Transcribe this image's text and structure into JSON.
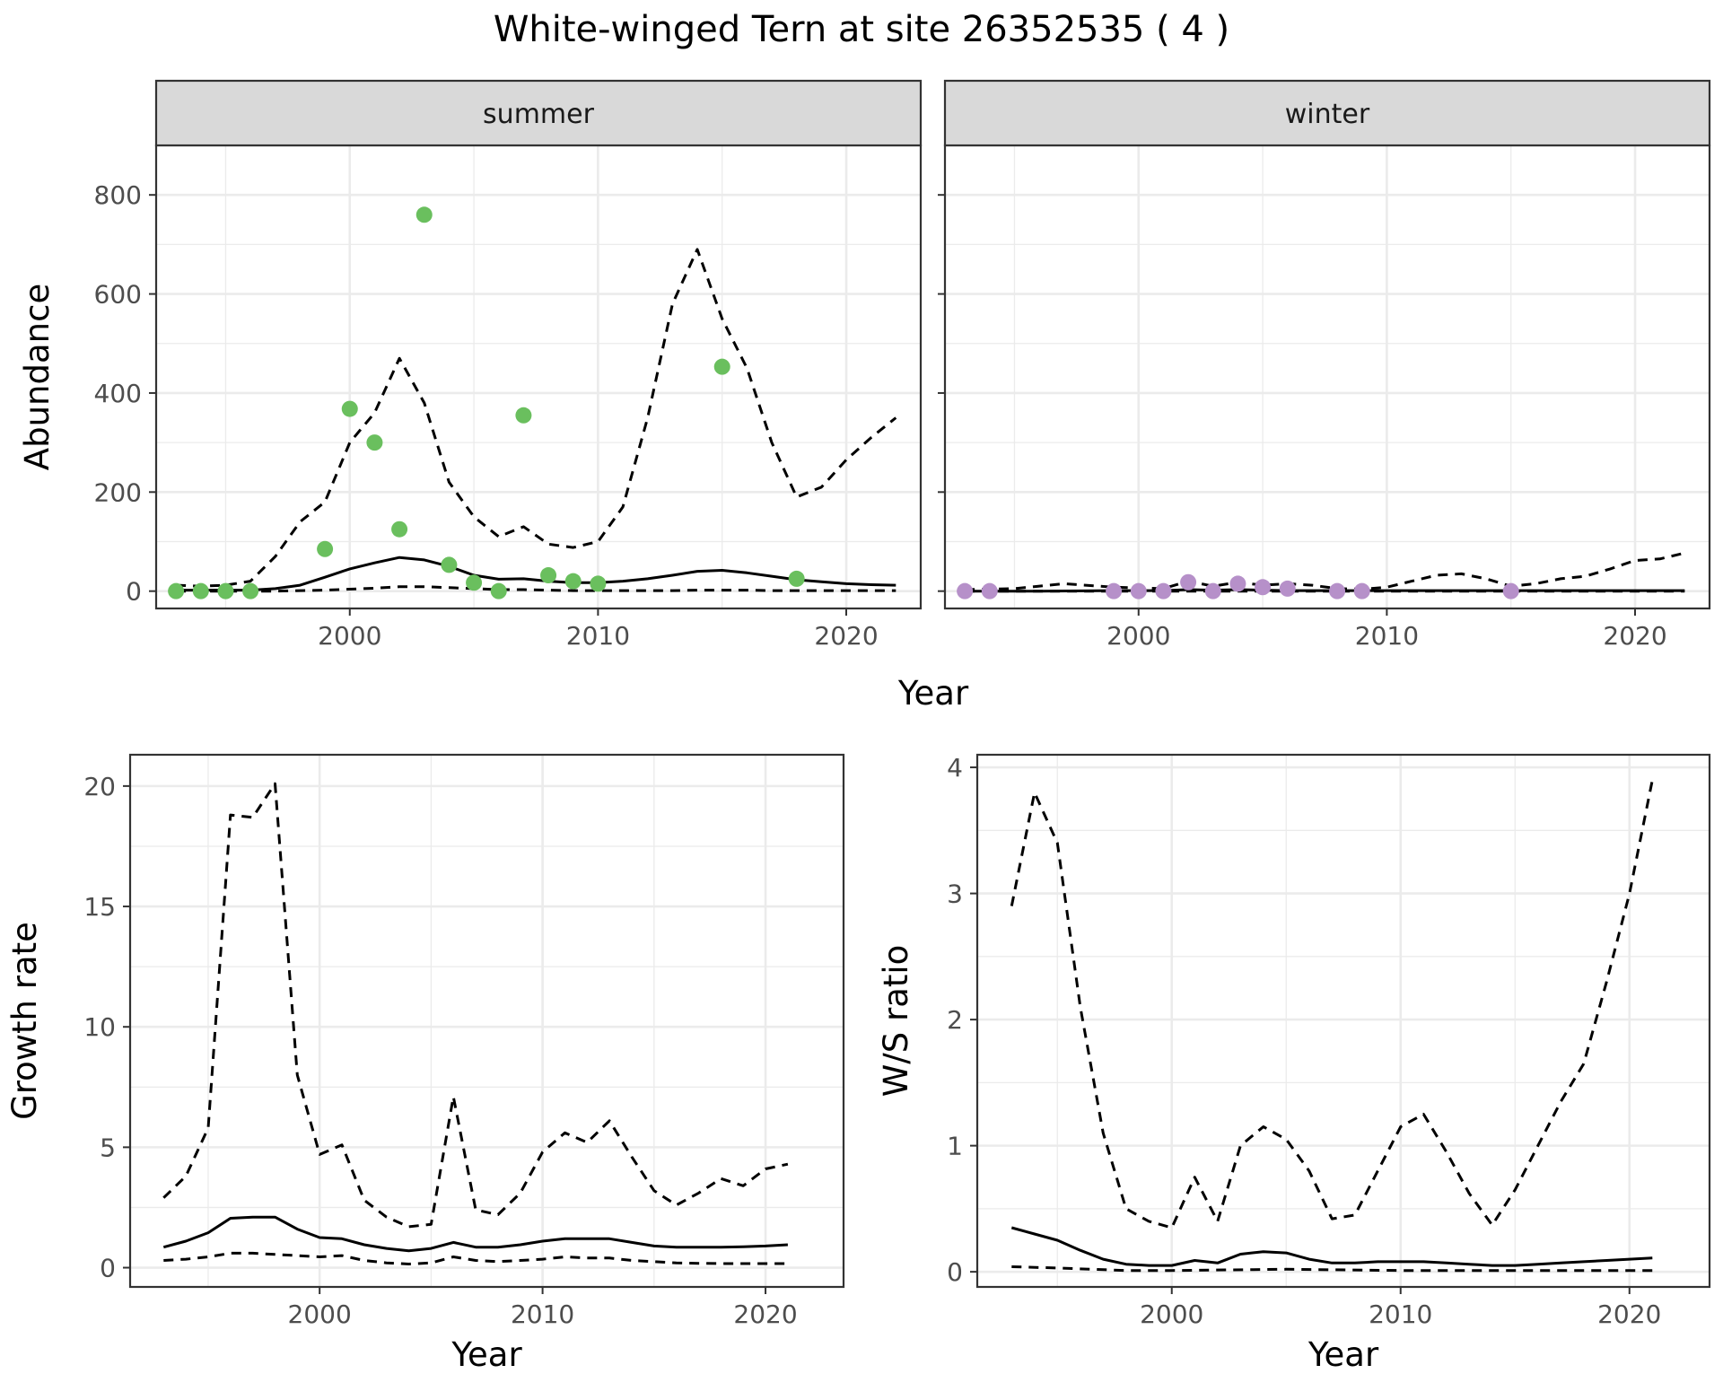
{
  "title": "White-winged Tern at site 26352535 ( 4 )",
  "colors": {
    "summer_points": "#6abf5e",
    "winter_points": "#b690c9",
    "strip_fill": "#d9d9d9",
    "grid": "#ebebeb",
    "line": "#000000"
  },
  "chart_data": [
    {
      "type": "scatter",
      "panel": "summer",
      "strip_label": "summer",
      "xlabel": "Year",
      "ylabel": "Abundance",
      "xlim": [
        1992.2,
        2023
      ],
      "ylim": [
        -35,
        900
      ],
      "xticks": [
        2000,
        2010,
        2020
      ],
      "yticks": [
        0,
        200,
        400,
        600,
        800
      ],
      "points": {
        "x": [
          1993,
          1994,
          1995,
          1996,
          1999,
          2000,
          2001,
          2002,
          2003,
          2004,
          2005,
          2006,
          2007,
          2008,
          2009,
          2010,
          2015,
          2018
        ],
        "y": [
          0,
          0,
          0,
          0,
          85,
          368,
          300,
          125,
          760,
          53,
          17,
          0,
          355,
          32,
          20,
          15,
          453,
          25
        ]
      },
      "series": [
        {
          "name": "estimate",
          "style": "solid",
          "x": [
            1993,
            1994,
            1995,
            1996,
            1997,
            1998,
            1999,
            2000,
            2001,
            2002,
            2003,
            2004,
            2005,
            2006,
            2007,
            2008,
            2009,
            2010,
            2011,
            2012,
            2013,
            2014,
            2015,
            2016,
            2017,
            2018,
            2019,
            2020,
            2021,
            2022
          ],
          "y": [
            2,
            2,
            2,
            2,
            5,
            12,
            28,
            45,
            57,
            68,
            63,
            50,
            32,
            24,
            25,
            20,
            17,
            17,
            20,
            25,
            32,
            40,
            42,
            37,
            30,
            23,
            19,
            15,
            13,
            12
          ]
        },
        {
          "name": "upper",
          "style": "dashed",
          "x": [
            1993,
            1994,
            1995,
            1996,
            1997,
            1998,
            1999,
            2000,
            2001,
            2002,
            2003,
            2004,
            2005,
            2006,
            2007,
            2008,
            2009,
            2010,
            2011,
            2012,
            2013,
            2014,
            2015,
            2016,
            2017,
            2018,
            2019,
            2020,
            2021,
            2022
          ],
          "y": [
            12,
            10,
            12,
            20,
            70,
            140,
            180,
            300,
            360,
            470,
            380,
            220,
            150,
            110,
            130,
            95,
            88,
            100,
            170,
            350,
            580,
            690,
            550,
            450,
            300,
            190,
            210,
            265,
            310,
            350
          ]
        },
        {
          "name": "lower",
          "style": "dashed",
          "x": [
            1993,
            1994,
            1995,
            1996,
            1997,
            1998,
            1999,
            2000,
            2001,
            2002,
            2003,
            2004,
            2005,
            2006,
            2007,
            2008,
            2009,
            2010,
            2011,
            2012,
            2013,
            2014,
            2015,
            2016,
            2017,
            2018,
            2019,
            2020,
            2021,
            2022
          ],
          "y": [
            0,
            0,
            0,
            0,
            0,
            1,
            2,
            4,
            6,
            9,
            9,
            7,
            5,
            3,
            3,
            2,
            1,
            1,
            1,
            1,
            1,
            2,
            2,
            2,
            1,
            1,
            1,
            1,
            1,
            1
          ]
        }
      ]
    },
    {
      "type": "scatter",
      "panel": "winter",
      "strip_label": "winter",
      "xlabel": "Year",
      "ylabel": "Abundance",
      "xlim": [
        1992.2,
        2023
      ],
      "ylim": [
        -35,
        900
      ],
      "xticks": [
        2000,
        2010,
        2020
      ],
      "yticks": [
        0,
        200,
        400,
        600,
        800
      ],
      "points": {
        "x": [
          1993,
          1994,
          1999,
          2000,
          2001,
          2002,
          2003,
          2004,
          2005,
          2006,
          2008,
          2009,
          2015
        ],
        "y": [
          0,
          0,
          0,
          0,
          0,
          18,
          0,
          15,
          8,
          5,
          0,
          0,
          0
        ]
      },
      "series": [
        {
          "name": "estimate",
          "style": "solid",
          "x": [
            1993,
            1996,
            1999,
            2001,
            2002,
            2003,
            2004,
            2005,
            2006,
            2008,
            2010,
            2013,
            2016,
            2019,
            2022
          ],
          "y": [
            0,
            0,
            1,
            1,
            3,
            2,
            3,
            2,
            1,
            1,
            1,
            1,
            1,
            1,
            1
          ]
        },
        {
          "name": "upper",
          "style": "dashed",
          "x": [
            1993,
            1995,
            1997,
            1999,
            2001,
            2002,
            2003,
            2004,
            2005,
            2006,
            2007,
            2008,
            2009,
            2010,
            2011,
            2012,
            2013,
            2014,
            2015,
            2016,
            2017,
            2018,
            2019,
            2020,
            2021,
            2022
          ],
          "y": [
            3,
            5,
            15,
            8,
            5,
            20,
            10,
            18,
            12,
            15,
            12,
            5,
            4,
            8,
            20,
            32,
            35,
            25,
            10,
            15,
            25,
            30,
            45,
            62,
            65,
            77
          ]
        },
        {
          "name": "lower",
          "style": "dashed",
          "x": [
            1993,
            2000,
            2005,
            2010,
            2015,
            2022
          ],
          "y": [
            0,
            0,
            0,
            0,
            0,
            0
          ]
        }
      ]
    },
    {
      "type": "line",
      "panel": "growth",
      "xlabel": "Year",
      "ylabel": "Growth rate",
      "xlim": [
        1991.5,
        2023.5
      ],
      "ylim": [
        -0.8,
        21.3
      ],
      "xticks": [
        2000,
        2010,
        2020
      ],
      "yticks": [
        0,
        5,
        10,
        15,
        20
      ],
      "series": [
        {
          "name": "estimate",
          "style": "solid",
          "x": [
            1993,
            1994,
            1995,
            1996,
            1997,
            1998,
            1999,
            2000,
            2001,
            2002,
            2003,
            2004,
            2005,
            2006,
            2007,
            2008,
            2009,
            2010,
            2011,
            2012,
            2013,
            2014,
            2015,
            2016,
            2017,
            2018,
            2019,
            2020,
            2021
          ],
          "y": [
            0.85,
            1.1,
            1.45,
            2.05,
            2.1,
            2.1,
            1.6,
            1.25,
            1.2,
            0.95,
            0.8,
            0.7,
            0.8,
            1.05,
            0.85,
            0.85,
            0.95,
            1.1,
            1.2,
            1.2,
            1.2,
            1.05,
            0.9,
            0.85,
            0.85,
            0.85,
            0.87,
            0.9,
            0.95
          ]
        },
        {
          "name": "upper",
          "style": "dashed",
          "x": [
            1993,
            1994,
            1995,
            1996,
            1997,
            1998,
            1999,
            2000,
            2001,
            2002,
            2003,
            2004,
            2005,
            2006,
            2007,
            2008,
            2009,
            2010,
            2011,
            2012,
            2013,
            2014,
            2015,
            2016,
            2017,
            2018,
            2019,
            2020,
            2021
          ],
          "y": [
            2.9,
            3.8,
            5.8,
            18.8,
            18.7,
            20.1,
            8.0,
            4.7,
            5.1,
            2.8,
            2.1,
            1.7,
            1.8,
            7.1,
            2.4,
            2.2,
            3.1,
            4.8,
            5.6,
            5.2,
            6.1,
            4.6,
            3.2,
            2.6,
            3.1,
            3.7,
            3.4,
            4.1,
            4.3
          ]
        },
        {
          "name": "lower",
          "style": "dashed",
          "x": [
            1993,
            1994,
            1995,
            1996,
            1997,
            1998,
            1999,
            2000,
            2001,
            2002,
            2003,
            2004,
            2005,
            2006,
            2007,
            2008,
            2009,
            2010,
            2011,
            2012,
            2013,
            2014,
            2015,
            2016,
            2017,
            2018,
            2019,
            2020,
            2021
          ],
          "y": [
            0.3,
            0.35,
            0.45,
            0.6,
            0.6,
            0.55,
            0.5,
            0.45,
            0.5,
            0.3,
            0.2,
            0.15,
            0.2,
            0.45,
            0.3,
            0.25,
            0.3,
            0.35,
            0.45,
            0.4,
            0.4,
            0.3,
            0.25,
            0.2,
            0.18,
            0.17,
            0.17,
            0.17,
            0.17
          ]
        }
      ]
    },
    {
      "type": "line",
      "panel": "ratio",
      "xlabel": "Year",
      "ylabel": "W/S ratio",
      "xlim": [
        1991.5,
        2023.5
      ],
      "ylim": [
        -0.12,
        4.1
      ],
      "xticks": [
        2000,
        2010,
        2020
      ],
      "yticks": [
        0,
        1,
        2,
        3,
        4
      ],
      "series": [
        {
          "name": "estimate",
          "style": "solid",
          "x": [
            1993,
            1994,
            1995,
            1996,
            1997,
            1998,
            1999,
            2000,
            2001,
            2002,
            2003,
            2004,
            2005,
            2006,
            2007,
            2008,
            2009,
            2010,
            2011,
            2012,
            2013,
            2014,
            2015,
            2016,
            2017,
            2018,
            2019,
            2020,
            2021
          ],
          "y": [
            0.35,
            0.3,
            0.25,
            0.17,
            0.1,
            0.06,
            0.05,
            0.05,
            0.09,
            0.07,
            0.14,
            0.16,
            0.15,
            0.1,
            0.07,
            0.07,
            0.08,
            0.08,
            0.08,
            0.07,
            0.06,
            0.05,
            0.05,
            0.06,
            0.07,
            0.08,
            0.09,
            0.1,
            0.11
          ]
        },
        {
          "name": "upper",
          "style": "dashed",
          "x": [
            1993,
            1994,
            1995,
            1996,
            1997,
            1998,
            1999,
            2000,
            2001,
            2002,
            2003,
            2004,
            2005,
            2006,
            2007,
            2008,
            2009,
            2010,
            2011,
            2012,
            2013,
            2014,
            2015,
            2016,
            2017,
            2018,
            2019,
            2020,
            2021
          ],
          "y": [
            2.9,
            3.8,
            3.4,
            2.1,
            1.1,
            0.5,
            0.4,
            0.35,
            0.75,
            0.4,
            1.0,
            1.15,
            1.05,
            0.8,
            0.42,
            0.45,
            0.8,
            1.15,
            1.25,
            0.95,
            0.62,
            0.37,
            0.65,
            1.0,
            1.35,
            1.65,
            2.3,
            3.0,
            3.9
          ]
        },
        {
          "name": "lower",
          "style": "dashed",
          "x": [
            1993,
            1995,
            1998,
            2000,
            2005,
            2010,
            2015,
            2021
          ],
          "y": [
            0.04,
            0.03,
            0.01,
            0.01,
            0.02,
            0.01,
            0.01,
            0.01
          ]
        }
      ]
    }
  ]
}
